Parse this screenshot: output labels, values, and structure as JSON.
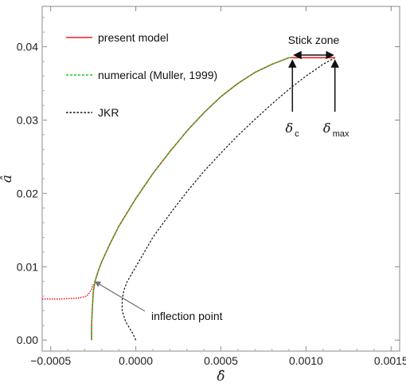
{
  "chart_data": {
    "type": "line",
    "xlabel": "δ̂",
    "ylabel": "â",
    "xlim": [
      -0.00055,
      0.00155
    ],
    "ylim": [
      -0.0015,
      0.0455
    ],
    "x_ticks": [
      "-0.0005",
      "0.0000",
      "0.0005",
      "0.0010",
      "0.0015"
    ],
    "y_ticks": [
      "0.00",
      "0.01",
      "0.02",
      "0.03",
      "0.04"
    ],
    "grid": false,
    "legend_position": "top-left",
    "series": [
      {
        "name": "present model",
        "color": "#e8202a",
        "style": "solid",
        "points": [
          [
            0.00092,
            0.0385
          ],
          [
            0.00117,
            0.0385
          ]
        ]
      },
      {
        "name": "numerical (Muller, 1999)",
        "color": "#22cc22",
        "style": "dashed",
        "points": [
          [
            -0.00026,
            0.0
          ],
          [
            -0.00026,
            0.002
          ],
          [
            -0.000255,
            0.0045
          ],
          [
            -0.00025,
            0.0065
          ],
          [
            -0.00024,
            0.008
          ],
          [
            -0.00022,
            0.0095
          ],
          [
            -0.0002,
            0.0107
          ],
          [
            -0.00015,
            0.0132
          ],
          [
            -0.0001,
            0.0155
          ],
          [
            0.0,
            0.0193
          ],
          [
            0.0001,
            0.0227
          ],
          [
            0.0002,
            0.0257
          ],
          [
            0.0003,
            0.0285
          ],
          [
            0.0004,
            0.031
          ],
          [
            0.0005,
            0.0332
          ],
          [
            0.0006,
            0.035
          ],
          [
            0.0007,
            0.0365
          ],
          [
            0.0008,
            0.0376
          ],
          [
            0.0009,
            0.0385
          ],
          [
            0.00117,
            0.0385
          ]
        ]
      },
      {
        "name": "JKR",
        "color": "#111111",
        "style": "dashed",
        "points": [
          [
            0.0,
            0.0
          ],
          [
            -2e-05,
            0.001
          ],
          [
            -6e-05,
            0.0025
          ],
          [
            -8e-05,
            0.004
          ],
          [
            -8e-05,
            0.0055
          ],
          [
            -7e-05,
            0.0068
          ],
          [
            -5e-05,
            0.008
          ],
          [
            0.0,
            0.01
          ],
          [
            0.0001,
            0.014
          ],
          [
            0.0002,
            0.0172
          ],
          [
            0.0003,
            0.0202
          ],
          [
            0.0004,
            0.023
          ],
          [
            0.0005,
            0.0255
          ],
          [
            0.0006,
            0.0279
          ],
          [
            0.0007,
            0.0301
          ],
          [
            0.0008,
            0.0322
          ],
          [
            0.0009,
            0.0342
          ],
          [
            0.001,
            0.036
          ],
          [
            0.0011,
            0.0376
          ],
          [
            0.00117,
            0.0385
          ]
        ]
      }
    ],
    "present_model_plateau_left": [
      [
        -0.00055,
        0.0056
      ],
      [
        -0.00045,
        0.0056
      ],
      [
        -0.00035,
        0.0057
      ],
      [
        -0.0003,
        0.0059
      ],
      [
        -0.00028,
        0.0062
      ],
      [
        -0.00026,
        0.0069
      ],
      [
        -0.00025,
        0.0076
      ]
    ],
    "annotations": {
      "stick_zone": "Stick zone",
      "delta_c_symbol": "δ",
      "delta_c_sub": "c",
      "delta_max_symbol": "δ",
      "delta_max_sub": "max",
      "inflection_point": "inflection point",
      "delta_c_x": 0.00092,
      "delta_max_x": 0.00117,
      "arrow_target": [
        -0.00025,
        0.0082
      ]
    }
  }
}
